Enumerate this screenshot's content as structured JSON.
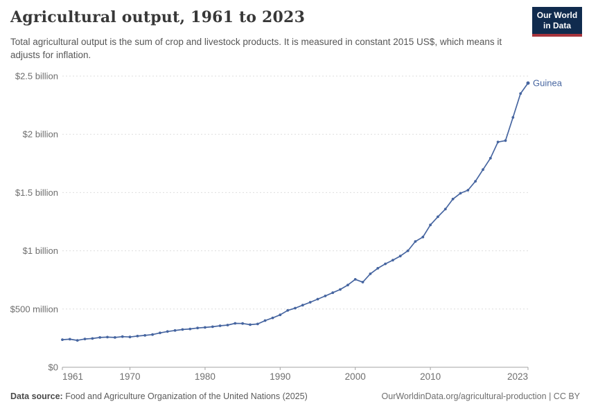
{
  "header": {
    "title": "Agricultural output, 1961 to 2023",
    "subtitle": "Total agricultural output is the sum of crop and livestock products. It is measured in constant 2015 US$, which means it adjusts for inflation.",
    "logo": {
      "line1": "Our World",
      "line2": "in Data"
    }
  },
  "chart_data": {
    "type": "line",
    "title": "Agricultural output, 1961 to 2023",
    "unit": "constant 2015 US$",
    "values_unit": "million US$",
    "xlabel": "",
    "ylabel": "",
    "xlim": [
      1961,
      2023
    ],
    "ylim": [
      0,
      2500
    ],
    "grid": "horizontal-dashed",
    "legend_position": "end-of-line-label",
    "x_ticks": [
      1961,
      1970,
      1980,
      1990,
      2000,
      2010,
      2023
    ],
    "y_ticks": [
      {
        "value": 0,
        "label": "$0"
      },
      {
        "value": 500,
        "label": "$500 million"
      },
      {
        "value": 1000,
        "label": "$1 billion"
      },
      {
        "value": 1500,
        "label": "$1.5 billion"
      },
      {
        "value": 2000,
        "label": "$2 billion"
      },
      {
        "value": 2500,
        "label": "$2.5 billion"
      }
    ],
    "x": [
      1961,
      1962,
      1963,
      1964,
      1965,
      1966,
      1967,
      1968,
      1969,
      1970,
      1971,
      1972,
      1973,
      1974,
      1975,
      1976,
      1977,
      1978,
      1979,
      1980,
      1981,
      1982,
      1983,
      1984,
      1985,
      1986,
      1987,
      1988,
      1989,
      1990,
      1991,
      1992,
      1993,
      1994,
      1995,
      1996,
      1997,
      1998,
      1999,
      2000,
      2001,
      2002,
      2003,
      2004,
      2005,
      2006,
      2007,
      2008,
      2009,
      2010,
      2011,
      2012,
      2013,
      2014,
      2015,
      2016,
      2017,
      2018,
      2019,
      2020,
      2021,
      2022,
      2023
    ],
    "series": [
      {
        "name": "Guinea",
        "color": "#4665a0",
        "values": [
          237,
          241,
          231,
          243,
          247,
          256,
          259,
          256,
          263,
          260,
          268,
          274,
          281,
          295,
          307,
          316,
          324,
          329,
          337,
          342,
          348,
          356,
          362,
          377,
          376,
          366,
          372,
          401,
          424,
          450,
          488,
          508,
          533,
          558,
          585,
          612,
          640,
          668,
          706,
          755,
          731,
          802,
          850,
          888,
          920,
          955,
          1000,
          1080,
          1118,
          1222,
          1292,
          1358,
          1444,
          1494,
          1520,
          1597,
          1697,
          1795,
          1934,
          1946,
          2145,
          2350,
          2440
        ]
      }
    ]
  },
  "footer": {
    "source_label": "Data source:",
    "source_text": "Food and Agriculture Organization of the United Nations (2025)",
    "url": "OurWorldinData.org/agricultural-production",
    "separator": " | ",
    "license": "CC BY"
  },
  "colors": {
    "line": "#4665a0",
    "entity_label": "#4665a0",
    "gridline": "#dddddd",
    "axis": "#a3a3a3",
    "tick_label": "#6e6e6e",
    "title": "#383838",
    "subtitle": "#565656",
    "logo_bg": "#102b4e",
    "logo_stripe": "#a8343c"
  }
}
